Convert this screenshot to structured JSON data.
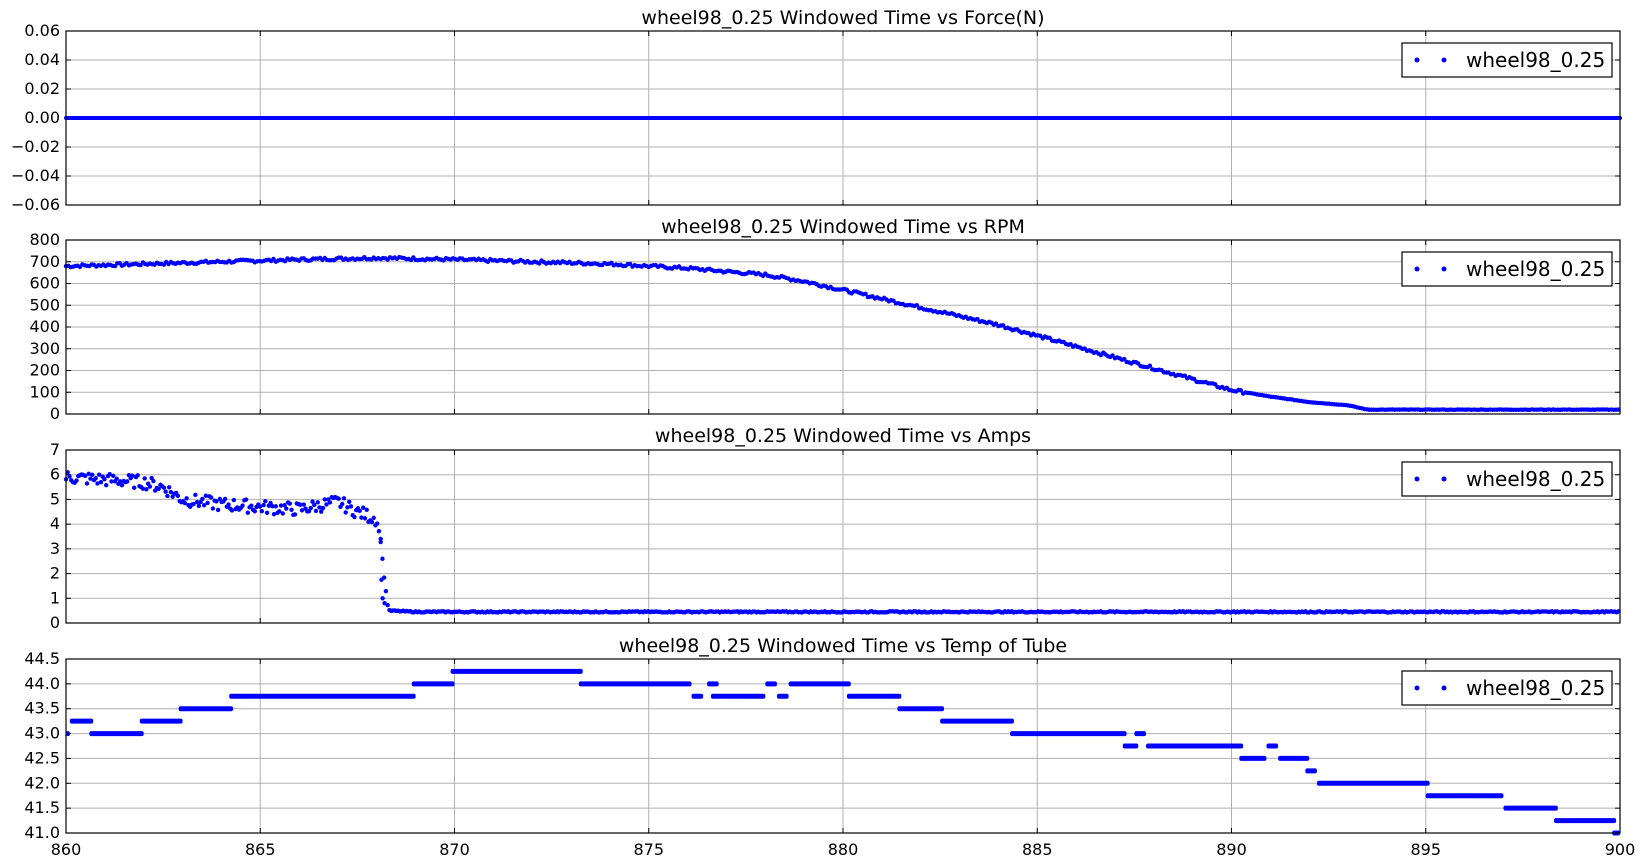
{
  "colors": {
    "series": "#0000ff",
    "grid": "#b0b0b0",
    "axes": "#000000"
  },
  "chart_data": [
    {
      "type": "scatter",
      "title": "wheel98_0.25 Windowed Time vs Force(N)",
      "legend": {
        "label": "wheel98_0.25",
        "placement": "upper right"
      },
      "xlim": [
        860,
        900
      ],
      "ylim": [
        -0.06,
        0.06
      ],
      "y_ticks": [
        "0.06",
        "0.04",
        "0.02",
        "0.00",
        "−0.02",
        "−0.04",
        "−0.06"
      ],
      "y_tick_values": [
        0.06,
        0.04,
        0.02,
        0.0,
        -0.02,
        -0.04,
        -0.06
      ],
      "grid": true,
      "series": [
        {
          "name": "wheel98_0.25",
          "x": [
            860,
            865,
            870,
            875,
            880,
            885,
            890,
            895,
            900
          ],
          "y": [
            0,
            0,
            0,
            0,
            0,
            0,
            0,
            0,
            0
          ]
        }
      ]
    },
    {
      "type": "scatter",
      "title": "wheel98_0.25 Windowed Time vs RPM",
      "legend": {
        "label": "wheel98_0.25",
        "placement": "upper right"
      },
      "xlim": [
        860,
        900
      ],
      "ylim": [
        0,
        800
      ],
      "y_ticks": [
        "800",
        "700",
        "600",
        "500",
        "400",
        "300",
        "200",
        "100",
        "0"
      ],
      "y_tick_values": [
        800,
        700,
        600,
        500,
        400,
        300,
        200,
        100,
        0
      ],
      "grid": true,
      "series": [
        {
          "name": "wheel98_0.25",
          "x": [
            860,
            862,
            864,
            866,
            868,
            870,
            872,
            874,
            876,
            878,
            879,
            880,
            881,
            882,
            883,
            884,
            885,
            886,
            887,
            888,
            889,
            890,
            891,
            892,
            893,
            893.5,
            894,
            896,
            898,
            900
          ],
          "y": [
            680,
            690,
            700,
            710,
            718,
            710,
            700,
            690,
            670,
            640,
            610,
            570,
            530,
            490,
            450,
            410,
            360,
            310,
            260,
            210,
            160,
            110,
            80,
            55,
            40,
            20,
            20,
            20,
            20,
            20
          ]
        }
      ]
    },
    {
      "type": "scatter",
      "title": "wheel98_0.25 Windowed Time vs Amps",
      "legend": {
        "label": "wheel98_0.25",
        "placement": "upper right"
      },
      "xlim": [
        860,
        900
      ],
      "ylim": [
        0,
        7
      ],
      "y_ticks": [
        "7",
        "6",
        "5",
        "4",
        "3",
        "2",
        "1",
        "0"
      ],
      "y_tick_values": [
        7,
        6,
        5,
        4,
        3,
        2,
        1,
        0
      ],
      "grid": true,
      "series": [
        {
          "name": "wheel98_0.25",
          "x": [
            860,
            861,
            862,
            862.5,
            863,
            864,
            865,
            866,
            867,
            867.5,
            868,
            868.1,
            868.2,
            868.3,
            869,
            875,
            880,
            885,
            890,
            895,
            900
          ],
          "y": [
            5.9,
            5.8,
            5.7,
            5.5,
            5.0,
            4.8,
            4.7,
            4.6,
            4.9,
            4.5,
            4.2,
            3.3,
            1.7,
            0.5,
            0.45,
            0.45,
            0.45,
            0.45,
            0.45,
            0.45,
            0.45
          ]
        }
      ]
    },
    {
      "type": "scatter",
      "title": "wheel98_0.25 Windowed Time vs Temp of Tube",
      "legend": {
        "label": "wheel98_0.25",
        "placement": "upper right"
      },
      "xlim": [
        860,
        900
      ],
      "ylim": [
        41.0,
        44.5
      ],
      "y_ticks": [
        "44.5",
        "44.0",
        "43.5",
        "43.0",
        "42.5",
        "42.0",
        "41.5",
        "41.0"
      ],
      "y_tick_values": [
        44.5,
        44.0,
        43.5,
        43.0,
        42.5,
        42.0,
        41.5,
        41.0
      ],
      "x_ticks": [
        "860",
        "865",
        "870",
        "875",
        "880",
        "885",
        "890",
        "895",
        "900"
      ],
      "x_tick_values": [
        860,
        865,
        870,
        875,
        880,
        885,
        890,
        895,
        900
      ],
      "grid": true,
      "series": [
        {
          "name": "wheel98_0.25",
          "segments": [
            [
              860.0,
              860.1,
              43.0
            ],
            [
              860.1,
              860.7,
              43.25
            ],
            [
              860.6,
              862.0,
              43.0
            ],
            [
              861.9,
              863.0,
              43.25
            ],
            [
              862.9,
              864.3,
              43.5
            ],
            [
              864.2,
              869.0,
              43.75
            ],
            [
              868.9,
              870.0,
              44.0
            ],
            [
              869.9,
              873.3,
              44.25
            ],
            [
              873.2,
              876.1,
              44.0
            ],
            [
              876.1,
              876.4,
              43.75
            ],
            [
              876.5,
              876.8,
              44.0
            ],
            [
              876.6,
              878.0,
              43.75
            ],
            [
              878.0,
              878.3,
              44.0
            ],
            [
              878.3,
              878.6,
              43.75
            ],
            [
              878.6,
              880.2,
              44.0
            ],
            [
              880.1,
              881.5,
              43.75
            ],
            [
              881.4,
              882.6,
              43.5
            ],
            [
              882.5,
              884.4,
              43.25
            ],
            [
              884.3,
              887.3,
              43.0
            ],
            [
              887.2,
              887.6,
              42.75
            ],
            [
              887.5,
              887.8,
              43.0
            ],
            [
              887.8,
              890.3,
              42.75
            ],
            [
              890.2,
              890.9,
              42.5
            ],
            [
              890.9,
              891.2,
              42.75
            ],
            [
              891.2,
              892.0,
              42.5
            ],
            [
              891.9,
              892.2,
              42.25
            ],
            [
              892.2,
              895.1,
              42.0
            ],
            [
              895.0,
              897.0,
              41.75
            ],
            [
              897.0,
              898.4,
              41.5
            ],
            [
              898.3,
              899.9,
              41.25
            ],
            [
              899.8,
              900.0,
              41.0
            ]
          ]
        }
      ]
    }
  ]
}
